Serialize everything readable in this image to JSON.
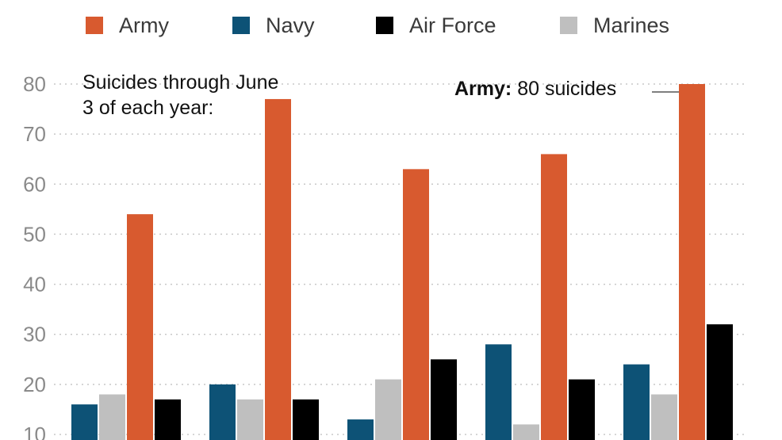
{
  "legend": {
    "items": [
      {
        "label": "Army",
        "color": "#d85a2f"
      },
      {
        "label": "Navy",
        "color": "#0d5276"
      },
      {
        "label": "Air Force",
        "color": "#000000"
      },
      {
        "label": "Marines",
        "color": "#bfbfbf"
      }
    ]
  },
  "annotations": {
    "note": "Suicides through June 3 of each year:",
    "army_bold": "Army:",
    "army_rest": " 80 suicides"
  },
  "chart_data": {
    "type": "bar",
    "categories": [
      "",
      "",
      "",
      "",
      ""
    ],
    "series_order_in_group": [
      "Navy",
      "Marines",
      "Army",
      "Air Force"
    ],
    "series": [
      {
        "name": "Navy",
        "color": "#0d5276",
        "values": [
          16,
          20,
          13,
          28,
          24
        ]
      },
      {
        "name": "Marines",
        "color": "#bfbfbf",
        "values": [
          18,
          17,
          21,
          12,
          18
        ]
      },
      {
        "name": "Army",
        "color": "#d85a2f",
        "values": [
          54,
          77,
          63,
          66,
          80
        ]
      },
      {
        "name": "Air Force",
        "color": "#000000",
        "values": [
          17,
          17,
          25,
          21,
          32
        ]
      }
    ],
    "yticks": [
      10,
      20,
      30,
      40,
      50,
      60,
      70,
      80
    ],
    "ylim_visible": [
      9,
      80
    ],
    "grid": true,
    "legend_position": "top"
  }
}
